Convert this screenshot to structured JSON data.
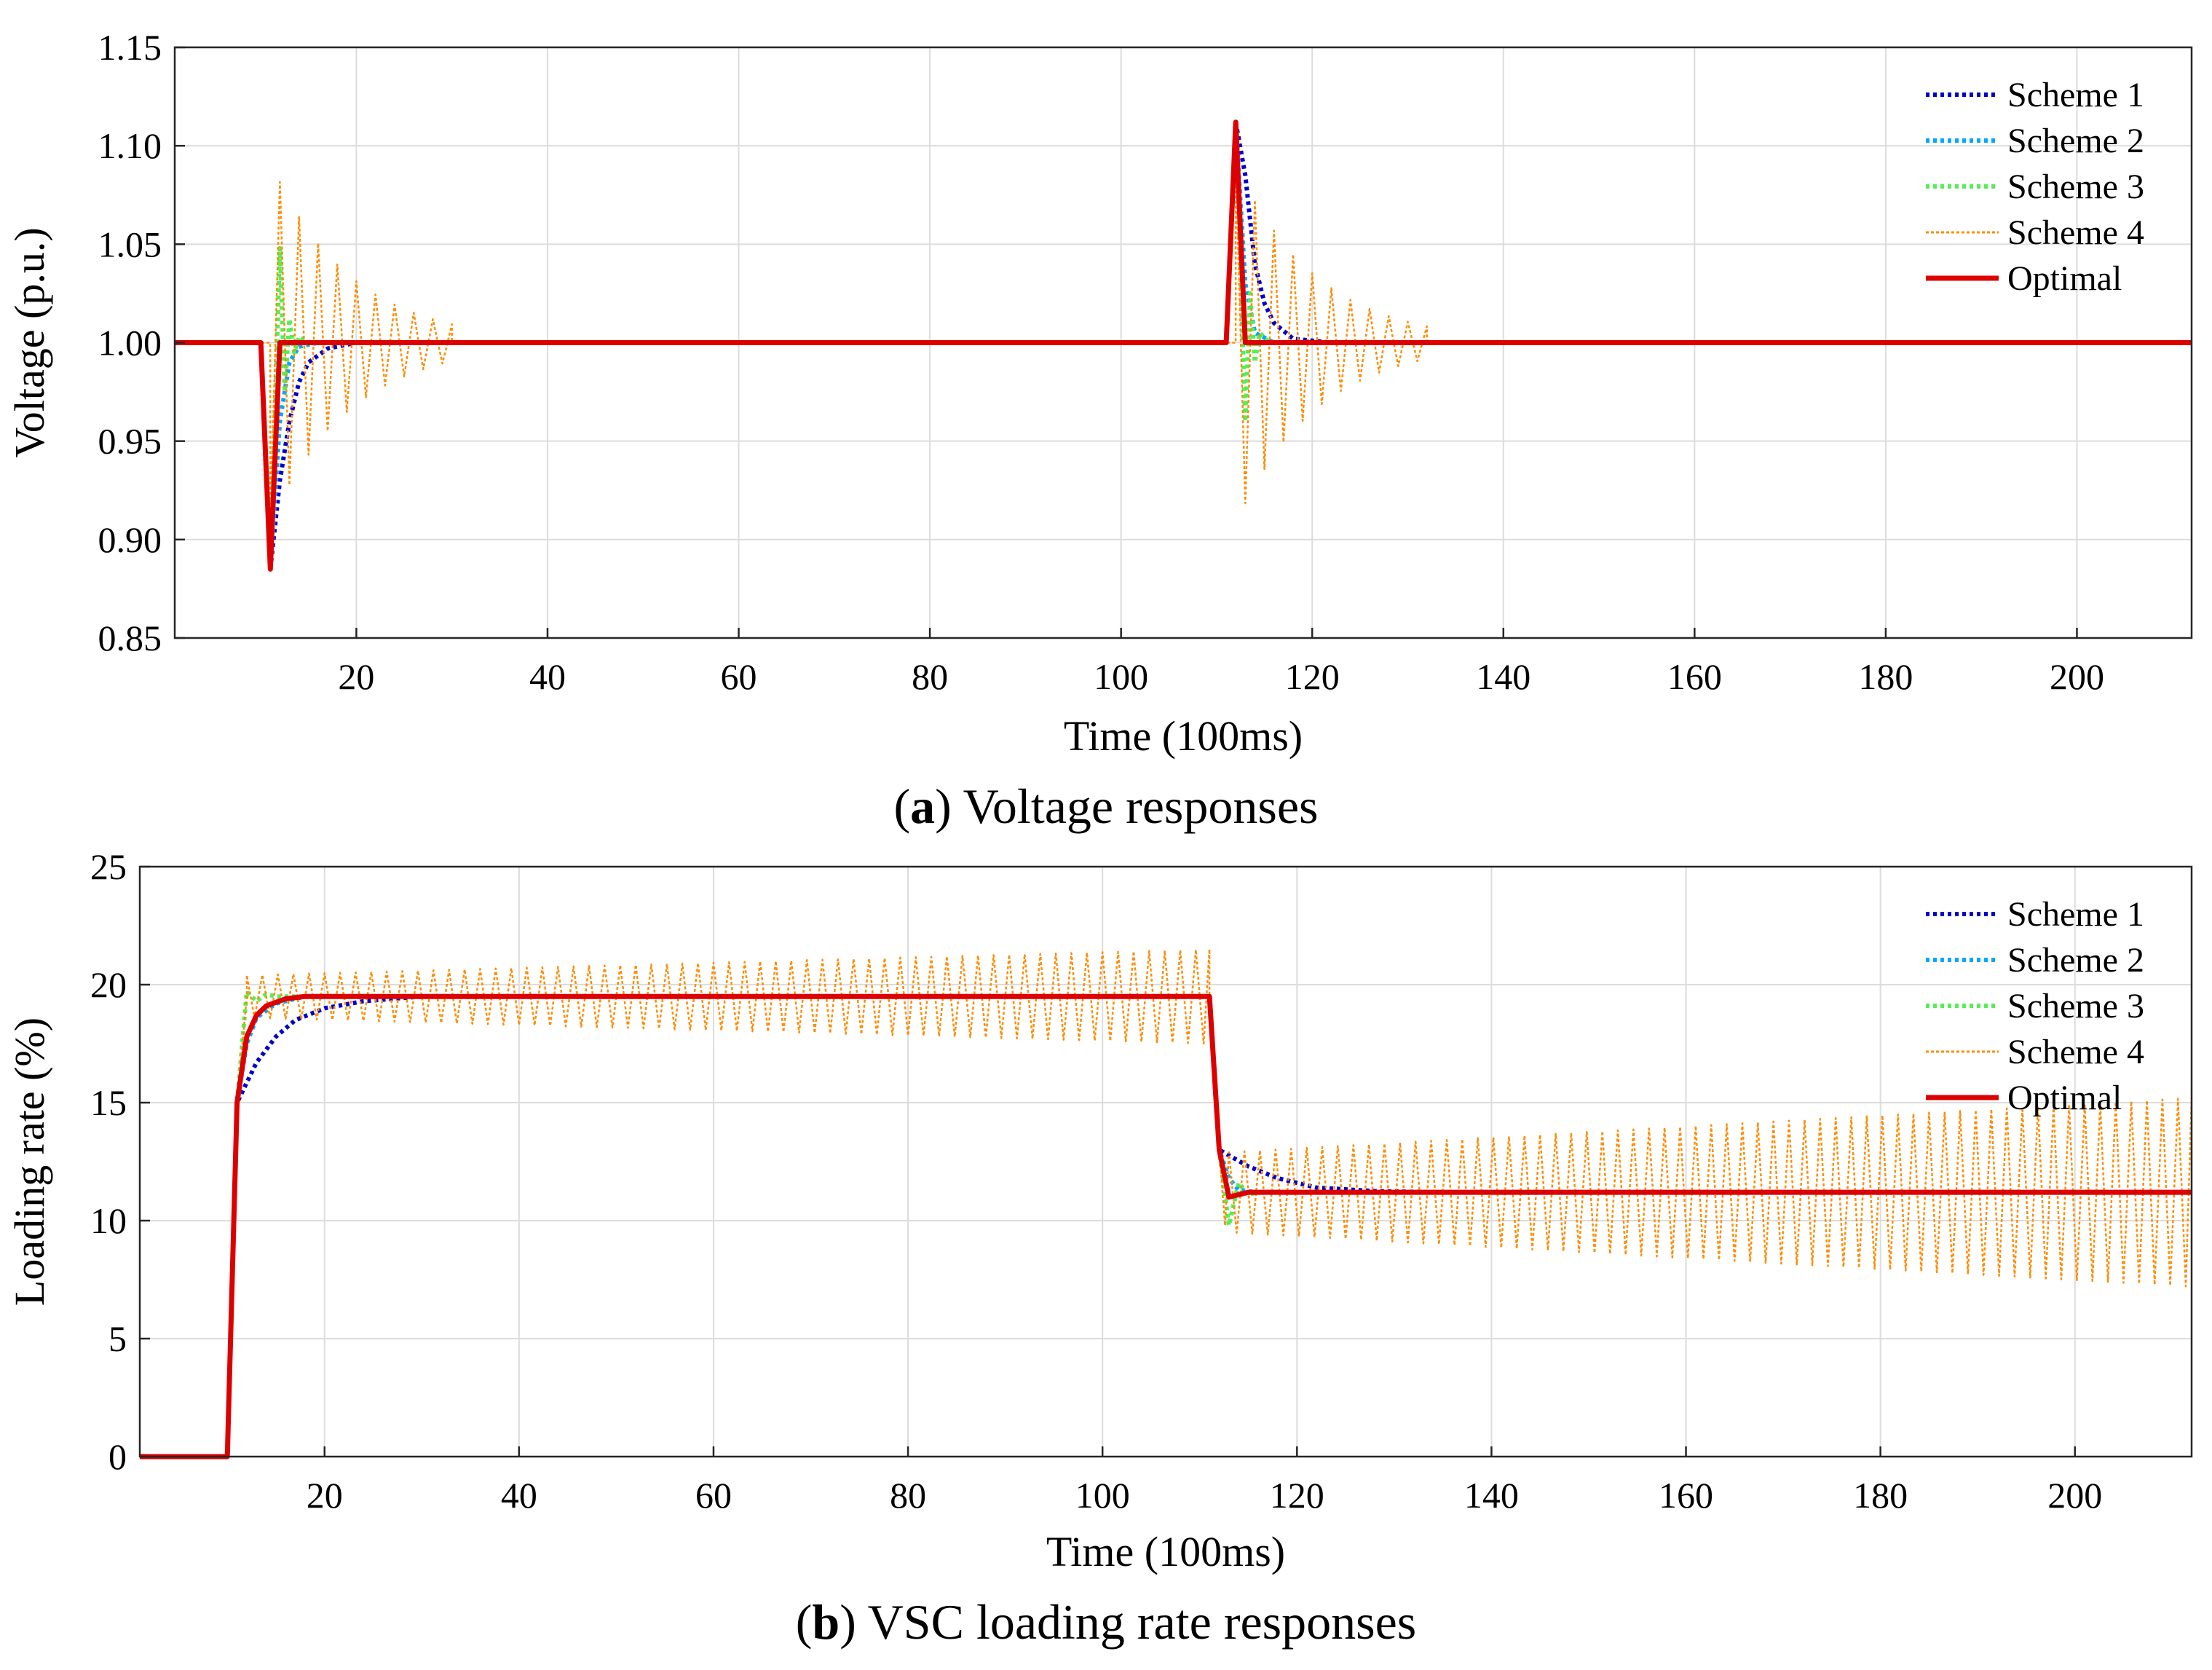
{
  "chart_data": [
    {
      "type": "line",
      "panel_id": "a",
      "caption_letter": "a",
      "caption_text": ") Voltage responses",
      "xlabel": "Time (100ms)",
      "ylabel": "Voltage (p.u.)",
      "xlim": [
        1,
        212
      ],
      "ylim": [
        0.85,
        1.15
      ],
      "x_ticks": [
        20,
        40,
        60,
        80,
        100,
        120,
        140,
        160,
        180,
        200
      ],
      "y_ticks": [
        "0.85",
        "0.90",
        "0.95",
        "1.00",
        "1.05",
        "1.10",
        "1.15"
      ],
      "grid": true,
      "legend_position": "top-right",
      "series": [
        {
          "name": "Scheme 1",
          "color": "#0000cc",
          "style": "dotted",
          "points": [
            [
              1,
              1.0
            ],
            [
              10,
              1.0
            ],
            [
              11,
              0.885
            ],
            [
              12,
              0.93
            ],
            [
              13,
              0.96
            ],
            [
              14,
              0.98
            ],
            [
              15,
              0.99
            ],
            [
              17,
              0.997
            ],
            [
              20,
              1.0
            ],
            [
              111,
              1.0
            ],
            [
              112,
              1.112
            ],
            [
              113,
              1.085
            ],
            [
              114,
              1.04
            ],
            [
              115,
              1.02
            ],
            [
              116,
              1.01
            ],
            [
              118,
              1.002
            ],
            [
              122,
              1.0
            ],
            [
              212,
              1.0
            ]
          ]
        },
        {
          "name": "Scheme 2",
          "color": "#00a8ff",
          "style": "dotted",
          "points": [
            [
              1,
              1.0
            ],
            [
              10,
              1.0
            ],
            [
              11,
              0.885
            ],
            [
              12,
              0.96
            ],
            [
              13,
              0.99
            ],
            [
              14,
              0.998
            ],
            [
              16,
              1.0
            ],
            [
              111,
              1.0
            ],
            [
              112,
              1.112
            ],
            [
              113,
              1.03
            ],
            [
              114,
              1.005
            ],
            [
              116,
              1.0
            ],
            [
              212,
              1.0
            ]
          ]
        },
        {
          "name": "Scheme 3",
          "color": "#55ee55",
          "style": "dotted",
          "points": [
            [
              1,
              1.0
            ],
            [
              10,
              1.0
            ],
            [
              11,
              0.885
            ],
            [
              12,
              1.048
            ],
            [
              12.5,
              0.975
            ],
            [
              13,
              1.012
            ],
            [
              13.5,
              0.995
            ],
            [
              14,
              1.003
            ],
            [
              15,
              1.0
            ],
            [
              111,
              1.0
            ],
            [
              112,
              1.112
            ],
            [
              113,
              0.96
            ],
            [
              113.5,
              1.025
            ],
            [
              114,
              0.99
            ],
            [
              114.5,
              1.005
            ],
            [
              115.5,
              1.0
            ],
            [
              212,
              1.0
            ]
          ]
        },
        {
          "name": "Scheme 4",
          "color": "#ff8c00",
          "style": "osc",
          "osc": [
            {
              "start": 11,
              "end": 30,
              "amp": 0.092,
              "decay": 0.2,
              "period": 2
            },
            {
              "start": 112,
              "end": 132,
              "amp": 0.092,
              "decay": 0.2,
              "period": 2
            }
          ],
          "base": 1.0,
          "points": []
        },
        {
          "name": "Optimal",
          "color": "#dd0000",
          "style": "solid",
          "points": [
            [
              1,
              1.0
            ],
            [
              10,
              1.0
            ],
            [
              11,
              0.885
            ],
            [
              12,
              1.0
            ],
            [
              111,
              1.0
            ],
            [
              112,
              1.112
            ],
            [
              113,
              1.0
            ],
            [
              212,
              1.0
            ]
          ]
        }
      ]
    },
    {
      "type": "line",
      "panel_id": "b",
      "caption_letter": "b",
      "caption_text": ") VSC loading rate responses",
      "xlabel": "Time (100ms)",
      "ylabel": "Loading rate (%)",
      "xlim": [
        1,
        212
      ],
      "ylim": [
        0,
        25
      ],
      "x_ticks": [
        20,
        40,
        60,
        80,
        100,
        120,
        140,
        160,
        180,
        200
      ],
      "y_ticks": [
        "0",
        "5",
        "10",
        "15",
        "20",
        "25"
      ],
      "grid": true,
      "legend_position": "top-right",
      "series": [
        {
          "name": "Scheme 1",
          "color": "#0000cc",
          "style": "dotted",
          "points": [
            [
              1,
              0
            ],
            [
              10,
              0
            ],
            [
              11,
              15
            ],
            [
              13,
              16.7
            ],
            [
              15,
              17.8
            ],
            [
              17,
              18.5
            ],
            [
              20,
              19.0
            ],
            [
              24,
              19.3
            ],
            [
              30,
              19.5
            ],
            [
              111,
              19.5
            ],
            [
              112,
              13.0
            ],
            [
              115,
              12.3
            ],
            [
              118,
              11.8
            ],
            [
              122,
              11.4
            ],
            [
              128,
              11.25
            ],
            [
              135,
              11.2
            ],
            [
              212,
              11.2
            ]
          ]
        },
        {
          "name": "Scheme 2",
          "color": "#00a8ff",
          "style": "dotted",
          "points": [
            [
              1,
              0
            ],
            [
              10,
              0
            ],
            [
              11,
              15
            ],
            [
              12,
              17.5
            ],
            [
              13,
              18.6
            ],
            [
              15,
              19.2
            ],
            [
              18,
              19.5
            ],
            [
              111,
              19.5
            ],
            [
              112,
              13.0
            ],
            [
              113,
              11.8
            ],
            [
              114,
              11.3
            ],
            [
              116,
              11.2
            ],
            [
              212,
              11.2
            ]
          ]
        },
        {
          "name": "Scheme 3",
          "color": "#55ee55",
          "style": "dotted",
          "points": [
            [
              1,
              0
            ],
            [
              10,
              0
            ],
            [
              11,
              15
            ],
            [
              12,
              19.7
            ],
            [
              13,
              19.3
            ],
            [
              14,
              19.6
            ],
            [
              15,
              19.5
            ],
            [
              111,
              19.5
            ],
            [
              112,
              13.0
            ],
            [
              113,
              9.8
            ],
            [
              114,
              11.6
            ],
            [
              115,
              11.1
            ],
            [
              116,
              11.2
            ],
            [
              212,
              11.2
            ]
          ]
        },
        {
          "name": "Scheme 4",
          "color": "#ff8c00",
          "style": "osc-grow",
          "segments": [
            {
              "start": 12,
              "end": 111,
              "base": 19.5,
              "amp0": 0.9,
              "amp1": 2.0,
              "period": 1.6
            },
            {
              "start": 113,
              "end": 212,
              "base": 11.2,
              "amp0": 1.7,
              "amp1": 4.0,
              "period": 1.6
            }
          ],
          "points": [
            [
              1,
              0
            ],
            [
              10,
              0
            ],
            [
              11,
              15
            ],
            [
              12,
              19.5
            ]
          ]
        },
        {
          "name": "Optimal",
          "color": "#dd0000",
          "style": "solid",
          "points": [
            [
              1,
              0
            ],
            [
              10,
              0
            ],
            [
              11,
              15
            ],
            [
              12,
              17.8
            ],
            [
              13,
              18.7
            ],
            [
              14,
              19.1
            ],
            [
              16,
              19.4
            ],
            [
              18,
              19.5
            ],
            [
              111,
              19.5
            ],
            [
              112,
              13.0
            ],
            [
              113,
              11.0
            ],
            [
              114,
              11.1
            ],
            [
              115,
              11.2
            ],
            [
              212,
              11.2
            ]
          ]
        }
      ]
    }
  ]
}
